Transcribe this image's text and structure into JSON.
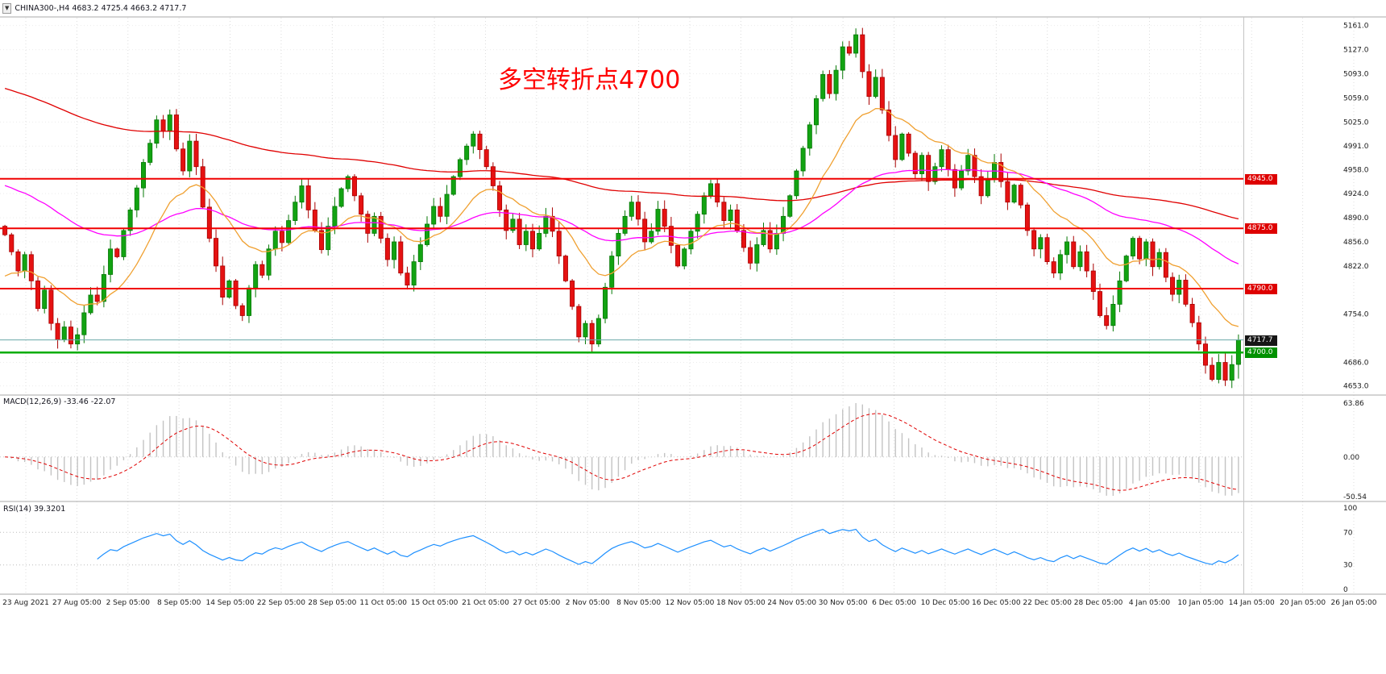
{
  "symbol_bar": {
    "text": "CHINA300-,H4 4683.2 4725.4 4663.2 4717.7",
    "symbol": "CHINA300-",
    "timeframe": "H4",
    "open": 4683.2,
    "high": 4725.4,
    "low": 4663.2,
    "close": 4717.7
  },
  "annotation": {
    "text": "多空转折点4700",
    "color": "#FF0000"
  },
  "chart_data": {
    "type": "candlestick",
    "title": "CHINA300- H4",
    "legend_position": "none",
    "grid": true,
    "y_range": {
      "max": 5172,
      "min": 4640
    },
    "y_ticks": [
      "5161.0",
      "5127.0",
      "5093.0",
      "5059.0",
      "5025.0",
      "4991.0",
      "4958.0",
      "4924.0",
      "4890.0",
      "4856.0",
      "4822.0",
      "4754.0",
      "4686.0",
      "4653.0"
    ],
    "x_label_dates": [
      "23 Aug 2021",
      "27 Aug 05:00",
      "2 Sep 05:00",
      "8 Sep 05:00",
      "14 Sep 05:00",
      "22 Sep 05:00",
      "28 Sep 05:00",
      "11 Oct 05:00",
      "15 Oct 05:00",
      "21 Oct 05:00",
      "27 Oct 05:00",
      "2 Nov 05:00",
      "8 Nov 05:00",
      "12 Nov 05:00",
      "18 Nov 05:00",
      "24 Nov 05:00",
      "30 Nov 05:00",
      "6 Dec 05:00",
      "10 Dec 05:00",
      "16 Dec 05:00",
      "22 Dec 05:00",
      "28 Dec 05:00",
      "4 Jan 05:00",
      "10 Jan 05:00",
      "14 Jan 05:00",
      "20 Jan 05:00",
      "26 Jan 05:00"
    ],
    "closes": [
      4866,
      4842,
      4815,
      4838,
      4801,
      4762,
      4788,
      4741,
      4718,
      4736,
      4712,
      4725,
      4756,
      4781,
      4772,
      4810,
      4846,
      4835,
      4872,
      4901,
      4932,
      4968,
      4995,
      5028,
      5012,
      5035,
      4987,
      4956,
      4998,
      4962,
      4905,
      4861,
      4822,
      4778,
      4801,
      4766,
      4752,
      4791,
      4824,
      4809,
      4846,
      4871,
      4855,
      4886,
      4912,
      4935,
      4901,
      4872,
      4845,
      4878,
      4906,
      4931,
      4948,
      4921,
      4895,
      4868,
      4892,
      4861,
      4831,
      4856,
      4812,
      4795,
      4828,
      4852,
      4881,
      4906,
      4892,
      4923,
      4948,
      4972,
      4991,
      5008,
      4986,
      4962,
      4935,
      4901,
      4872,
      4888,
      4852,
      4871,
      4846,
      4868,
      4892,
      4871,
      4836,
      4801,
      4765,
      4722,
      4741,
      4712,
      4748,
      4792,
      4836,
      4868,
      4892,
      4912,
      4888,
      4856,
      4871,
      4902,
      4878,
      4851,
      4822,
      4846,
      4871,
      4895,
      4921,
      4938,
      4912,
      4886,
      4901,
      4872,
      4848,
      4826,
      4852,
      4872,
      4846,
      4868,
      4892,
      4921,
      4956,
      4988,
      5021,
      5058,
      5092,
      5065,
      5098,
      5131,
      5122,
      5148,
      5096,
      5061,
      5088,
      5042,
      5006,
      4972,
      5008,
      4981,
      4952,
      4978,
      4941,
      4962,
      4986,
      4958,
      4932,
      4956,
      4978,
      4948,
      4921,
      4945,
      4968,
      4941,
      4912,
      4936,
      4908,
      4872,
      4846,
      4862,
      4828,
      4812,
      4838,
      4856,
      4821,
      4842,
      4815,
      4786,
      4752,
      4738,
      4768,
      4801,
      4836,
      4861,
      4832,
      4856,
      4821,
      4841,
      4806,
      4782,
      4802,
      4768,
      4742,
      4712,
      4682,
      4662,
      4686,
      4661,
      4683,
      4717.7
    ],
    "current_bar": {
      "open": 4683.2,
      "high": 4725.4,
      "low": 4663.2,
      "close": 4717.7
    },
    "levels": [
      {
        "price": 4945.0,
        "color": "#F00000",
        "width": 2
      },
      {
        "price": 4875.0,
        "color": "#F00000",
        "width": 2
      },
      {
        "price": 4790.0,
        "color": "#F00000",
        "width": 2
      },
      {
        "price": 4700.0,
        "color": "#00AD00",
        "width": 2.5
      },
      {
        "price": 4717.7,
        "color": "#69A8A8",
        "width": 1
      }
    ],
    "price_badges": [
      {
        "text": "4945.0",
        "price": 4945.0,
        "bg": "#DE0000"
      },
      {
        "text": "4875.0",
        "price": 4875.0,
        "bg": "#DE0000"
      },
      {
        "text": "4790.0",
        "price": 4790.0,
        "bg": "#DE0000"
      },
      {
        "text": "4717.7",
        "price": 4717.7,
        "bg": "#161616"
      },
      {
        "text": "4700.0",
        "price": 4700.0,
        "bg": "#009100"
      }
    ],
    "moving_averages": [
      {
        "name": "ma-slow-line",
        "color": "#E00000",
        "period": 160,
        "start": 5075
      },
      {
        "name": "ma-medium-line",
        "color": "#FF00FF",
        "period": 55,
        "start": 4938
      },
      {
        "name": "ma-fast-line",
        "color": "#F0A030",
        "period": 16,
        "start": 4800
      }
    ],
    "panes": {
      "macd": {
        "label": "MACD(12,26,9) -33.46 -22.07",
        "fast": 12,
        "slow": 26,
        "signal": 9,
        "main_value": -33.46,
        "signal_value": -22.07,
        "scale_top": "63.86",
        "scale_zero": "0.00",
        "scale_bottom": "-50.54",
        "hist_color": "#C3C3C3",
        "signal_color": "#E00000"
      },
      "rsi": {
        "label": "RSI(14) 39.3201",
        "period": 14,
        "value": 39.3201,
        "scale": [
          "100",
          "70",
          "30",
          "0"
        ],
        "upper_level": 70,
        "lower_level": 30,
        "line_color": "#1E90FF"
      }
    },
    "colors": {
      "up": "#12A312",
      "up_stroke": "#067806",
      "down": "#E51212",
      "down_stroke": "#A80000",
      "grid": "#DCDCDC",
      "background": "#FFFFFF",
      "annotation_red": "#FF0000"
    }
  }
}
